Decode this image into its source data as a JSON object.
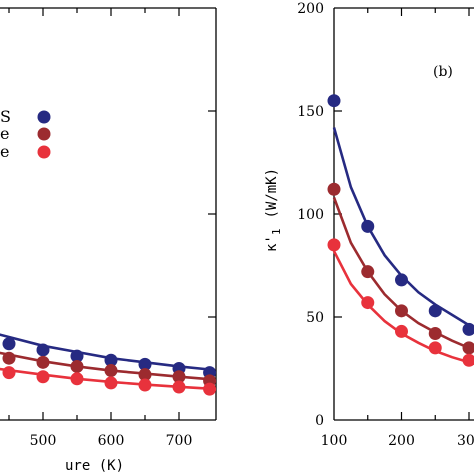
{
  "chart_data": [
    {
      "panel": "a",
      "type": "scatter",
      "xlabel": "ure (K)",
      "ylabel": "",
      "xticks": [
        "500",
        "600",
        "700"
      ],
      "x_range_visible": [
        430,
        745
      ],
      "ylim": [
        0,
        200
      ],
      "legend_position": "upper-left",
      "legend_labels": [
        "S",
        "e",
        "e"
      ],
      "series": [
        {
          "color": "#262a82",
          "points": {
            "x": [
              450,
              500,
              550,
              600,
              650,
              700,
              745
            ],
            "y": [
              37,
              34,
              31,
              29,
              27,
              25,
              23
            ]
          },
          "fit": {
            "x": [
              430,
              500,
              550,
              600,
              650,
              700,
              745
            ],
            "y": [
              42,
              36,
              33,
              30,
              28,
              26,
              24.5
            ]
          }
        },
        {
          "color": "#9c2b2f",
          "points": {
            "x": [
              450,
              500,
              550,
              600,
              650,
              700,
              745
            ],
            "y": [
              30,
              28,
              26,
              24,
              22,
              21,
              19
            ]
          },
          "fit": {
            "x": [
              430,
              500,
              550,
              600,
              650,
              700,
              745
            ],
            "y": [
              33,
              28.5,
              26,
              24,
              22.5,
              21,
              19.8
            ]
          }
        },
        {
          "color": "#e8323c",
          "points": {
            "x": [
              450,
              500,
              550,
              600,
              650,
              700,
              745
            ],
            "y": [
              23,
              21,
              20,
              18,
              17,
              16,
              15
            ]
          },
          "fit": {
            "x": [
              430,
              500,
              550,
              600,
              650,
              700,
              745
            ],
            "y": [
              25,
              22,
              20,
              18.5,
              17.2,
              16.1,
              15.2
            ]
          }
        }
      ]
    },
    {
      "panel": "b",
      "panel_label": "(b)",
      "type": "scatter",
      "xlabel": "",
      "ylabel": "κ'₁ (W/mK)",
      "ylabel_main": "κ'",
      "ylabel_sub": "1",
      "ylabel_unit": "(W/mK)",
      "xticks": [
        "100",
        "200",
        "30"
      ],
      "yticks": [
        "0",
        "50",
        "100",
        "150",
        "200"
      ],
      "x_range_visible": [
        100,
        335
      ],
      "ylim": [
        0,
        200
      ],
      "series": [
        {
          "color": "#262a82",
          "points": {
            "x": [
              100,
              150,
              200,
              250,
              300
            ],
            "y": [
              155,
              94,
              68,
              53,
              44
            ]
          },
          "fit": {
            "x": [
              100,
              125,
              150,
              175,
              200,
              225,
              250,
              275,
              300,
              335
            ],
            "y": [
              142,
              113,
              94,
              80,
              70,
              62,
              56,
              51,
              46,
              41
            ]
          }
        },
        {
          "color": "#9c2b2f",
          "points": {
            "x": [
              100,
              150,
              200,
              250,
              300
            ],
            "y": [
              112,
              72,
              53,
              42,
              35
            ]
          },
          "fit": {
            "x": [
              100,
              125,
              150,
              175,
              200,
              225,
              250,
              275,
              300,
              335
            ],
            "y": [
              108,
              86,
              72,
              61,
              53,
              47,
              42.5,
              38.5,
              35,
              31.5
            ]
          }
        },
        {
          "color": "#e8323c",
          "points": {
            "x": [
              100,
              150,
              200,
              250,
              300
            ],
            "y": [
              85,
              57,
              43,
              35,
              29
            ]
          },
          "fit": {
            "x": [
              100,
              125,
              150,
              175,
              200,
              225,
              250,
              275,
              300,
              335
            ],
            "y": [
              82,
              66,
              56,
              48,
              42,
              37.5,
              33.5,
              30.5,
              28,
              25
            ]
          }
        }
      ]
    }
  ]
}
